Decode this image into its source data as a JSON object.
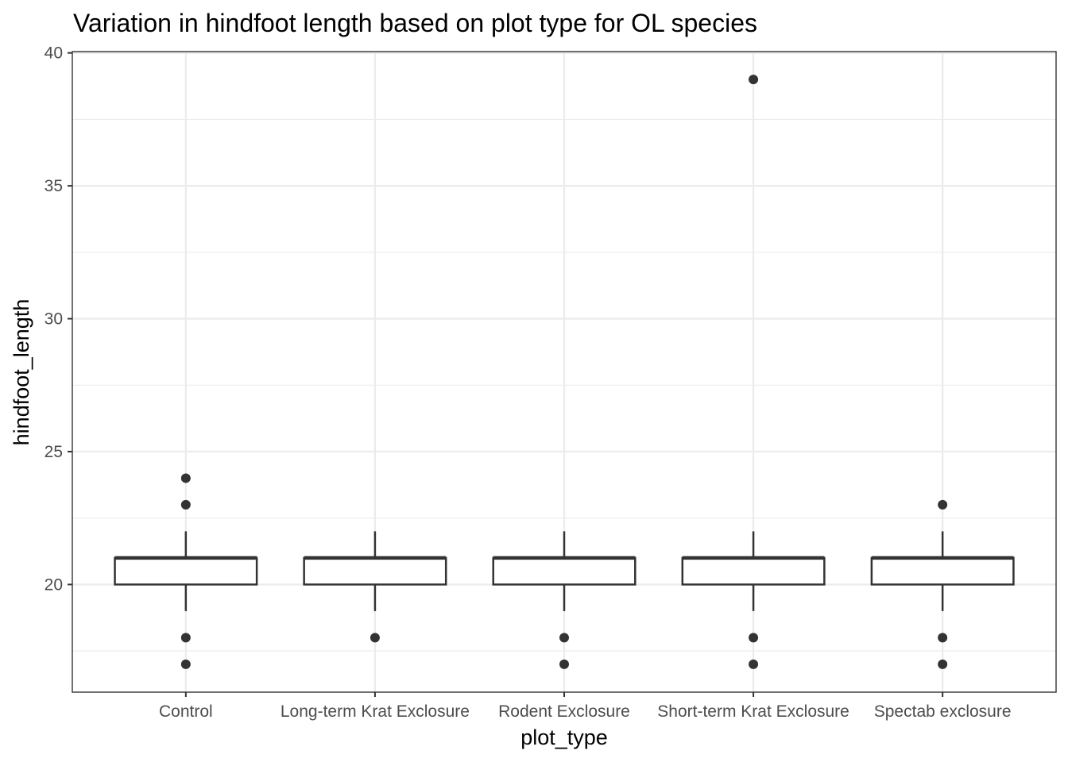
{
  "chart_data": {
    "type": "boxplot",
    "title": "Variation in hindfoot length based on plot type for OL species",
    "xlabel": "plot_type",
    "ylabel": "hindfoot_length",
    "ylim": [
      15.95,
      40.05
    ],
    "y_ticks": [
      20,
      25,
      30,
      35,
      40
    ],
    "y_minor": [
      17.5,
      22.5,
      27.5,
      32.5,
      37.5
    ],
    "grid": true,
    "categories": [
      "Control",
      "Long-term Krat Exclosure",
      "Rodent Exclosure",
      "Short-term Krat Exclosure",
      "Spectab exclosure"
    ],
    "boxes": [
      {
        "category": "Control",
        "whisker_low": 19,
        "q1": 20,
        "median": 21,
        "q3": 21,
        "whisker_high": 22,
        "outliers": [
          24,
          23,
          18,
          17
        ]
      },
      {
        "category": "Long-term Krat Exclosure",
        "whisker_low": 19,
        "q1": 20,
        "median": 21,
        "q3": 21,
        "whisker_high": 22,
        "outliers": [
          18
        ]
      },
      {
        "category": "Rodent Exclosure",
        "whisker_low": 19,
        "q1": 20,
        "median": 21,
        "q3": 21,
        "whisker_high": 22,
        "outliers": [
          18,
          17
        ]
      },
      {
        "category": "Short-term Krat Exclosure",
        "whisker_low": 19,
        "q1": 20,
        "median": 21,
        "q3": 21,
        "whisker_high": 22,
        "outliers": [
          39,
          18,
          17
        ]
      },
      {
        "category": "Spectab exclosure",
        "whisker_low": 19,
        "q1": 20,
        "median": 21,
        "q3": 21,
        "whisker_high": 22,
        "outliers": [
          23,
          18,
          17
        ]
      }
    ]
  }
}
